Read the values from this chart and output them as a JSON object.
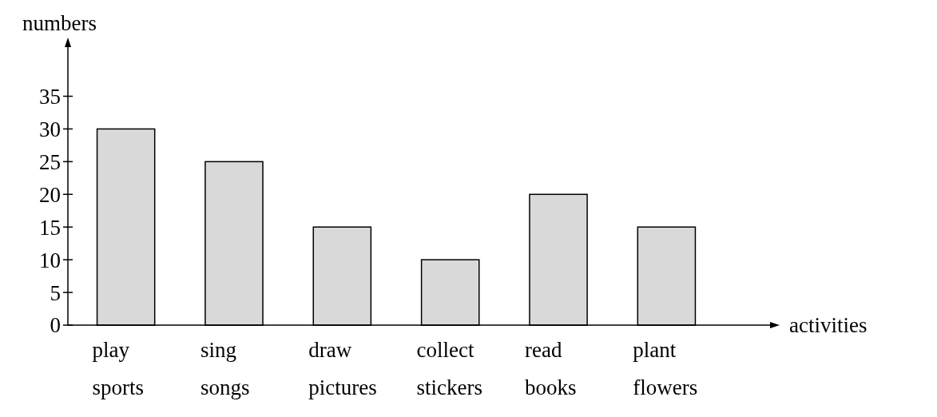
{
  "chart_data": {
    "type": "bar",
    "xlabel": "activities",
    "ylabel": "numbers",
    "categories": [
      "play sports",
      "sing songs",
      "draw pictures",
      "collect stickers",
      "read books",
      "plant flowers"
    ],
    "values": [
      30,
      25,
      15,
      10,
      20,
      15
    ],
    "color": "#d9d9d9",
    "ylim": [
      0,
      43
    ],
    "yticks": [
      0,
      5,
      10,
      15,
      20,
      25,
      30,
      35
    ]
  }
}
